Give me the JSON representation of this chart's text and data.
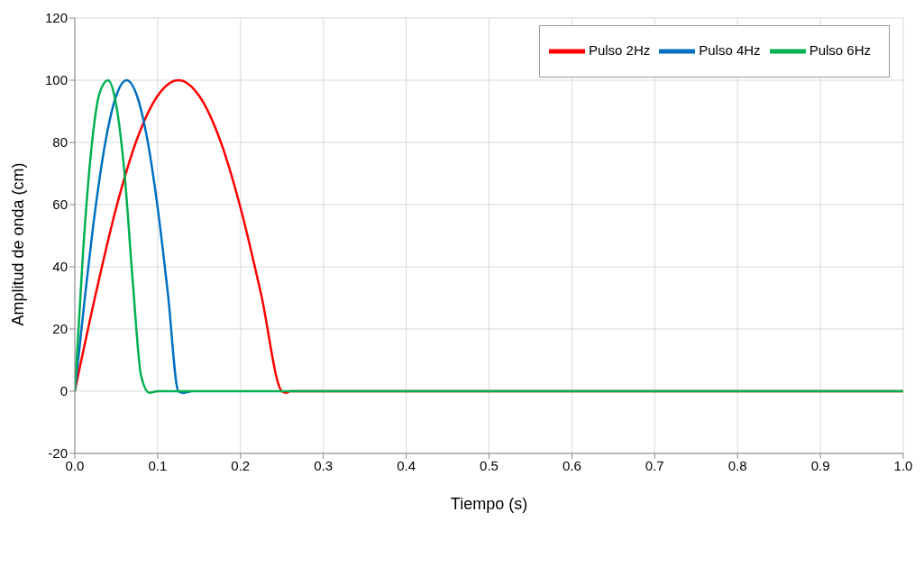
{
  "chart_data": {
    "type": "line",
    "xlabel": "Tiempo (s)",
    "ylabel": "Amplitud de onda (cm)",
    "xlim": [
      0,
      1
    ],
    "xticks": [
      {
        "value": 0,
        "label": "0.0"
      },
      0.1,
      0.2,
      0.3,
      0.4,
      0.5,
      0.6,
      0.7,
      0.8,
      0.9,
      {
        "value": 1,
        "label": "1.0"
      }
    ],
    "ylim": [
      -20,
      120
    ],
    "yticks": [
      -20,
      0,
      20,
      40,
      60,
      80,
      100,
      120
    ],
    "grid": true,
    "legend": "top right",
    "marker": "none",
    "line_style": "solid",
    "series": [
      {
        "name": "Pulso 2Hz",
        "color": "#ff0000",
        "x": [
          0,
          0.025,
          0.05,
          0.075,
          0.1,
          0.125,
          0.15,
          0.175,
          0.2,
          0.225,
          0.25,
          0.255,
          0.26,
          1
        ],
        "values": [
          0,
          31,
          59,
          81,
          95,
          100,
          95,
          81,
          59,
          31,
          0,
          -0.5,
          0,
          0
        ]
      },
      {
        "name": "Pulso 4Hz",
        "color": "#0070c0",
        "x": [
          0,
          0.0125,
          0.025,
          0.0375,
          0.05,
          0.0625,
          0.075,
          0.0875,
          0.1,
          0.1125,
          0.125,
          0.13,
          0.14
        ],
        "values": [
          0,
          31,
          59,
          81,
          95,
          100,
          95,
          81,
          59,
          31,
          0,
          -0.5,
          0
        ]
      },
      {
        "name": "Pulso 6Hz",
        "color": "#00b050",
        "x": [
          0,
          0.01,
          0.02,
          0.03,
          0.04,
          0.05,
          0.06,
          0.07,
          0.08,
          0.09,
          0.1,
          1
        ],
        "values": [
          0,
          45,
          78,
          96,
          100,
          92,
          70,
          35,
          5,
          -0.5,
          0,
          0
        ]
      }
    ]
  }
}
